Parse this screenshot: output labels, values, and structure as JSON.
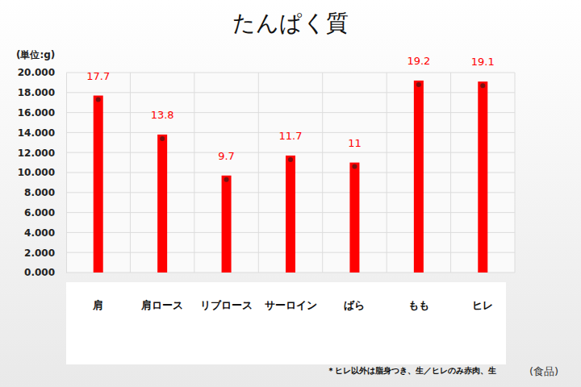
{
  "chart_data": {
    "type": "bar",
    "title": "たんぱく質",
    "y_label": "(単位:g)",
    "x_label": "(食品)",
    "note": "＊ヒレ以外は脂身つき、生／ヒレのみ赤肉、生",
    "categories": [
      "肩",
      "肩ロース",
      "リブロース",
      "サーロイン",
      "ばら",
      "もも",
      "ヒレ"
    ],
    "values": [
      17.7,
      13.8,
      9.7,
      11.7,
      11,
      19.2,
      19.1
    ],
    "color": "#ff0000",
    "marker": "circle",
    "data_labels": true,
    "grid": true,
    "ylim": [
      0,
      20
    ],
    "yticks": [
      {
        "value": 0,
        "label": "0.000"
      },
      {
        "value": 2,
        "label": "2.000"
      },
      {
        "value": 4,
        "label": "4.000"
      },
      {
        "value": 6,
        "label": "6.000"
      },
      {
        "value": 8,
        "label": "8.000"
      },
      {
        "value": 10,
        "label": "10.000"
      },
      {
        "value": 12,
        "label": "12.000"
      },
      {
        "value": 14,
        "label": "14.000"
      },
      {
        "value": 16,
        "label": "16.000"
      },
      {
        "value": 18,
        "label": "18.000"
      },
      {
        "value": 20,
        "label": "20.000"
      }
    ]
  }
}
